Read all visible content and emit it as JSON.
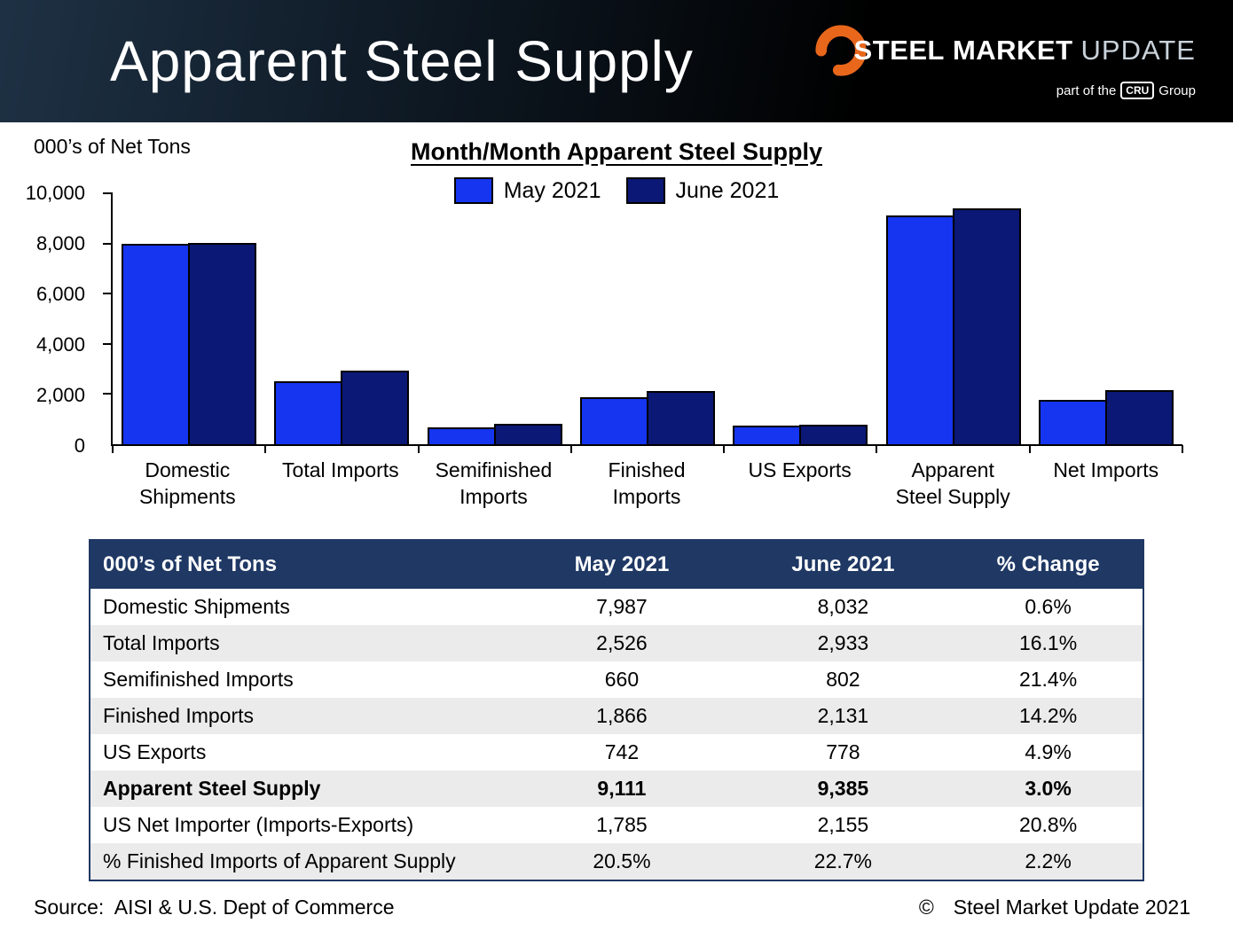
{
  "header": {
    "title": "Apparent Steel Supply",
    "logo": {
      "steel": "STEEL",
      "market": "MARKET",
      "update": "UPDATE",
      "tagline_prefix": "part of the",
      "cru": "CRU",
      "tagline_suffix": "Group",
      "accent_color": "#e8671b"
    }
  },
  "chart": {
    "units_label": "000’s of Net Tons",
    "title": "Month/Month Apparent Steel Supply"
  },
  "chart_data": {
    "type": "bar",
    "title": "Month/Month Apparent Steel Supply",
    "ylabel": "000’s of Net Tons",
    "categories": [
      "Domestic Shipments",
      "Total Imports",
      "Semifinished Imports",
      "Finished Imports",
      "US Exports",
      "Apparent Steel Supply",
      "Net Imports"
    ],
    "tick_labels": [
      "Domestic\nShipments",
      "Total Imports",
      "Semifinished\nImports",
      "Finished\nImports",
      "US Exports",
      "Apparent\nSteel Supply",
      "Net Imports"
    ],
    "series": [
      {
        "name": "May 2021",
        "color": "#1535f0",
        "values": [
          7987,
          2526,
          660,
          1866,
          742,
          9111,
          1785
        ]
      },
      {
        "name": "June 2021",
        "color": "#0b1875",
        "values": [
          8032,
          2933,
          802,
          2131,
          778,
          9385,
          2155
        ]
      }
    ],
    "ylim": [
      0,
      10000
    ],
    "yticks": [
      0,
      2000,
      4000,
      6000,
      8000,
      10000
    ],
    "ytick_labels": [
      "0",
      "2,000",
      "4,000",
      "6,000",
      "8,000",
      "10,000"
    ],
    "grid": false,
    "legend_position": "top-center"
  },
  "table": {
    "header_bg": "#1f3864",
    "headers": [
      "000’s of Net Tons",
      "May 2021",
      "June 2021",
      "% Change"
    ],
    "rows": [
      {
        "cells": [
          "Domestic Shipments",
          "7,987",
          "8,032",
          "0.6%"
        ],
        "bold": false
      },
      {
        "cells": [
          "Total Imports",
          "2,526",
          "2,933",
          "16.1%"
        ],
        "bold": false
      },
      {
        "cells": [
          "Semifinished Imports",
          "660",
          "802",
          "21.4%"
        ],
        "bold": false
      },
      {
        "cells": [
          "Finished Imports",
          "1,866",
          "2,131",
          "14.2%"
        ],
        "bold": false
      },
      {
        "cells": [
          "US Exports",
          "742",
          "778",
          "4.9%"
        ],
        "bold": false
      },
      {
        "cells": [
          "Apparent Steel Supply",
          "9,111",
          "9,385",
          "3.0%"
        ],
        "bold": true
      },
      {
        "cells": [
          "US Net Importer (Imports-Exports)",
          "1,785",
          "2,155",
          "20.8%"
        ],
        "bold": false
      },
      {
        "cells": [
          "% Finished Imports of Apparent Supply",
          "20.5%",
          "22.7%",
          "2.2%"
        ],
        "bold": false
      }
    ]
  },
  "footer": {
    "source": "Source:  AISI & U.S. Dept of Commerce",
    "copyright_symbol": "©",
    "copyright": "Steel Market Update 2021"
  }
}
